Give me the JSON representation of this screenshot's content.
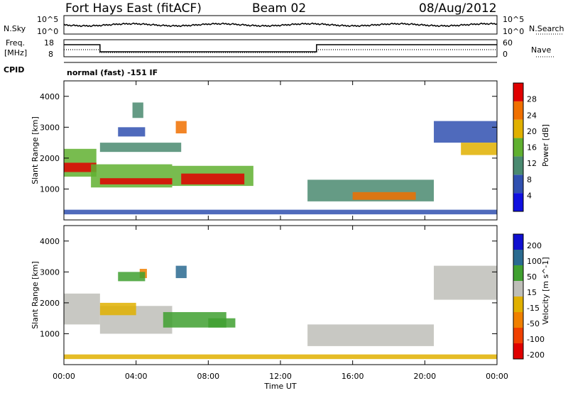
{
  "header": {
    "radar": "Fort Hays East (fitACF)",
    "beam": "Beam 02",
    "date": "08/Aug/2012"
  },
  "noise_panel": {
    "left_label": "N.Sky",
    "right_label": "N.Search",
    "left_ticks": [
      "10^5",
      "10^0"
    ],
    "right_ticks": [
      "10^5",
      "10^0"
    ]
  },
  "freq_panel": {
    "left_label_line1": "Freq.",
    "left_label_line2": "[MHz]",
    "left_ticks": [
      "18",
      "8"
    ],
    "right_label": "Nave",
    "right_ticks": [
      "60",
      "0"
    ]
  },
  "cpid_panel": {
    "label": "CPID",
    "text": "normal (fast) -151 IF"
  },
  "x_axis": {
    "label": "Time UT",
    "ticks": [
      "00:00",
      "04:00",
      "08:00",
      "12:00",
      "16:00",
      "20:00",
      "00:00"
    ]
  },
  "y_axis": {
    "label": "Slant Range [km]",
    "ticks": [
      "1000",
      "2000",
      "3000",
      "4000"
    ]
  },
  "power_scale": {
    "label": "Power [dB]",
    "ticks": [
      "4",
      "8",
      "12",
      "16",
      "20",
      "24",
      "28"
    ],
    "colors": [
      "#1010e0",
      "#3050b0",
      "#4a8a70",
      "#60b030",
      "#e0b000",
      "#f07000",
      "#e00000"
    ]
  },
  "velocity_scale": {
    "label": "Velocity [m s^-1]",
    "ticks": [
      "200",
      "100",
      "50",
      "15",
      "-15",
      "-50",
      "-100",
      "-200"
    ],
    "colors": [
      "#1010d0",
      "#2a6a90",
      "#40a030",
      "#bebeb8",
      "#e0b000",
      "#f08000",
      "#f04000",
      "#e00000"
    ]
  },
  "chart_data": {
    "type": "heatmap",
    "x_range": [
      "00:00",
      "24:00"
    ],
    "y_range": [
      0,
      4500
    ],
    "power_regions": [
      {
        "t0": 0.0,
        "t1": 1.8,
        "r0": 1400,
        "r1": 2300,
        "dB": 16
      },
      {
        "t0": 0.0,
        "t1": 1.8,
        "r0": 1550,
        "r1": 1850,
        "dB": 26
      },
      {
        "t0": 1.5,
        "t1": 6.0,
        "r0": 1050,
        "r1": 1800,
        "dB": 14
      },
      {
        "t0": 2.0,
        "t1": 6.0,
        "r0": 1150,
        "r1": 1350,
        "dB": 26
      },
      {
        "t0": 6.0,
        "t1": 10.5,
        "r0": 1100,
        "r1": 1750,
        "dB": 14
      },
      {
        "t0": 6.5,
        "t1": 10.0,
        "r0": 1150,
        "r1": 1500,
        "dB": 27
      },
      {
        "t0": 2.0,
        "t1": 6.5,
        "r0": 2200,
        "r1": 2500,
        "dB": 10
      },
      {
        "t0": 3.0,
        "t1": 4.5,
        "r0": 2700,
        "r1": 3000,
        "dB": 8
      },
      {
        "t0": 6.2,
        "t1": 6.8,
        "r0": 2800,
        "r1": 3200,
        "dB": 22
      },
      {
        "t0": 3.8,
        "t1": 4.4,
        "r0": 3300,
        "r1": 3800,
        "dB": 12
      },
      {
        "t0": 13.5,
        "t1": 20.5,
        "r0": 600,
        "r1": 1300,
        "dB": 12
      },
      {
        "t0": 16.0,
        "t1": 19.5,
        "r0": 650,
        "r1": 900,
        "dB": 25
      },
      {
        "t0": 20.5,
        "t1": 24.0,
        "r0": 2500,
        "r1": 3200,
        "dB": 8
      },
      {
        "t0": 22.0,
        "t1": 24.0,
        "r0": 2100,
        "r1": 2500,
        "dB": 18
      },
      {
        "t0": 0.0,
        "t1": 24.0,
        "r0": 180,
        "r1": 330,
        "dB": 6
      }
    ],
    "velocity_regions": [
      {
        "t0": 0.0,
        "t1": 2.0,
        "r0": 1300,
        "r1": 2300,
        "v": 0
      },
      {
        "t0": 2.0,
        "t1": 6.0,
        "r0": 1000,
        "r1": 1900,
        "v": 0
      },
      {
        "t0": 2.0,
        "t1": 4.0,
        "r0": 1600,
        "r1": 2000,
        "v": -40
      },
      {
        "t0": 5.5,
        "t1": 9.0,
        "r0": 1200,
        "r1": 1700,
        "v": 40
      },
      {
        "t0": 8.0,
        "t1": 9.5,
        "r0": 1200,
        "r1": 1500,
        "v": 75
      },
      {
        "t0": 6.2,
        "t1": 6.8,
        "r0": 2800,
        "r1": 3200,
        "v": 150
      },
      {
        "t0": 4.2,
        "t1": 4.6,
        "r0": 2800,
        "r1": 3100,
        "v": -60
      },
      {
        "t0": 3.0,
        "t1": 4.5,
        "r0": 2700,
        "r1": 3000,
        "v": 50
      },
      {
        "t0": 13.5,
        "t1": 20.5,
        "r0": 600,
        "r1": 1300,
        "v": 0
      },
      {
        "t0": 20.5,
        "t1": 24.0,
        "r0": 2100,
        "r1": 3200,
        "v": 0
      },
      {
        "t0": 0.0,
        "t1": 24.0,
        "r0": 180,
        "r1": 330,
        "v": -40
      }
    ],
    "nave_steps": [
      {
        "t0": 0.0,
        "t1": 2.0,
        "value": 15
      },
      {
        "t0": 2.0,
        "t1": 14.0,
        "value": 3
      },
      {
        "t0": 14.0,
        "t1": 24.0,
        "value": 15
      }
    ]
  }
}
